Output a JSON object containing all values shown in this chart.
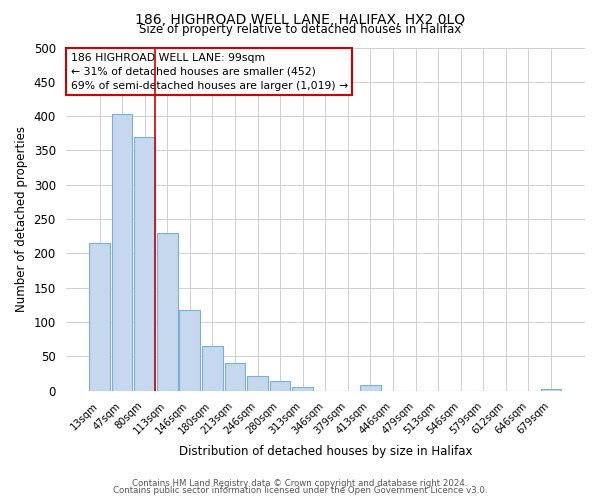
{
  "title1": "186, HIGHROAD WELL LANE, HALIFAX, HX2 0LQ",
  "title2": "Size of property relative to detached houses in Halifax",
  "xlabel": "Distribution of detached houses by size in Halifax",
  "ylabel": "Number of detached properties",
  "bar_labels": [
    "13sqm",
    "47sqm",
    "80sqm",
    "113sqm",
    "146sqm",
    "180sqm",
    "213sqm",
    "246sqm",
    "280sqm",
    "313sqm",
    "346sqm",
    "379sqm",
    "413sqm",
    "446sqm",
    "479sqm",
    "513sqm",
    "546sqm",
    "579sqm",
    "612sqm",
    "646sqm",
    "679sqm"
  ],
  "bar_heights": [
    215,
    403,
    370,
    230,
    118,
    65,
    40,
    22,
    15,
    5,
    0,
    0,
    8,
    0,
    0,
    0,
    0,
    0,
    0,
    0,
    3
  ],
  "bar_color": "#c5d8ed",
  "bar_edgecolor": "#7bafd4",
  "ylim": [
    0,
    500
  ],
  "yticks": [
    0,
    50,
    100,
    150,
    200,
    250,
    300,
    350,
    400,
    450,
    500
  ],
  "vline_color": "#cc0000",
  "annotation_line1": "186 HIGHROAD WELL LANE: 99sqm",
  "annotation_line2": "← 31% of detached houses are smaller (452)",
  "annotation_line3": "69% of semi-detached houses are larger (1,019) →",
  "footer1": "Contains HM Land Registry data © Crown copyright and database right 2024.",
  "footer2": "Contains public sector information licensed under the Open Government Licence v3.0.",
  "background_color": "#ffffff",
  "grid_color": "#d0d0d0"
}
